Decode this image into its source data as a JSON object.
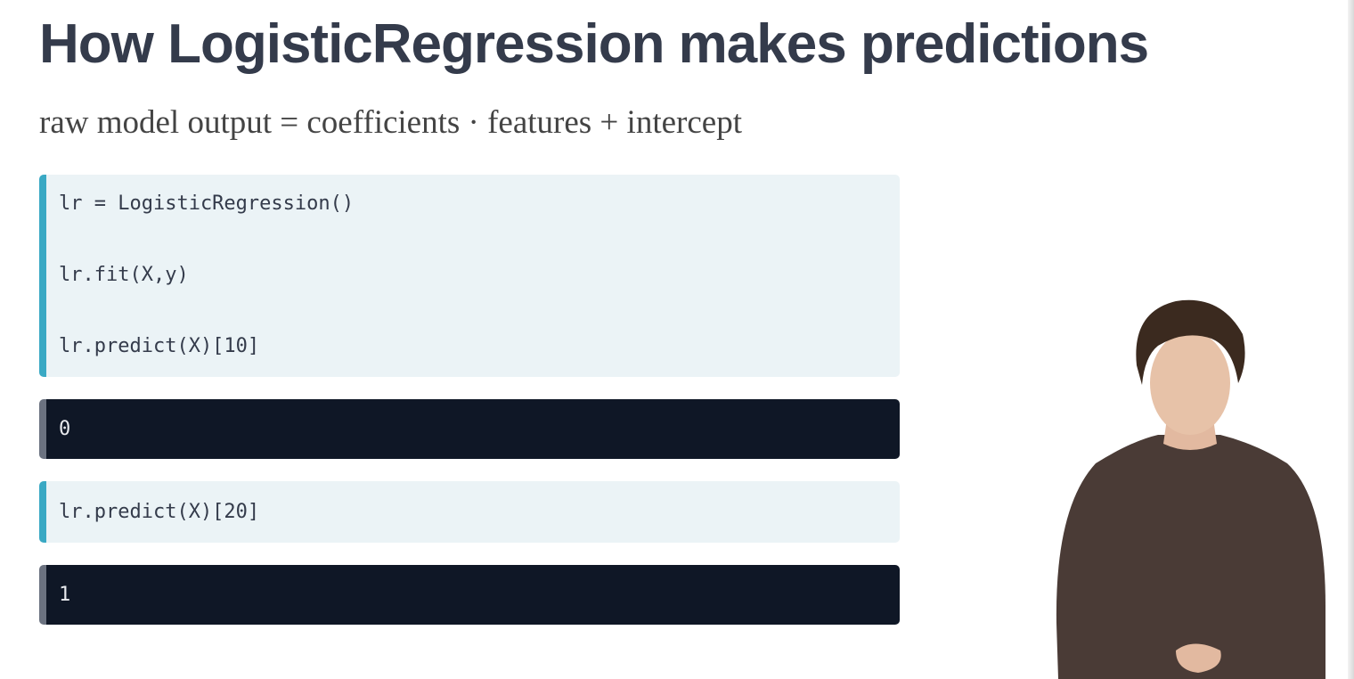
{
  "header": {
    "title": "How LogisticRegression makes predictions"
  },
  "formula": "raw model output = coefficients · features + intercept",
  "cells": [
    {
      "code": [
        "lr = LogisticRegression()",
        "lr.fit(X,y)",
        "lr.predict(X)[10]"
      ],
      "output": "0"
    },
    {
      "code": [
        "lr.predict(X)[20]"
      ],
      "output": "1"
    }
  ]
}
